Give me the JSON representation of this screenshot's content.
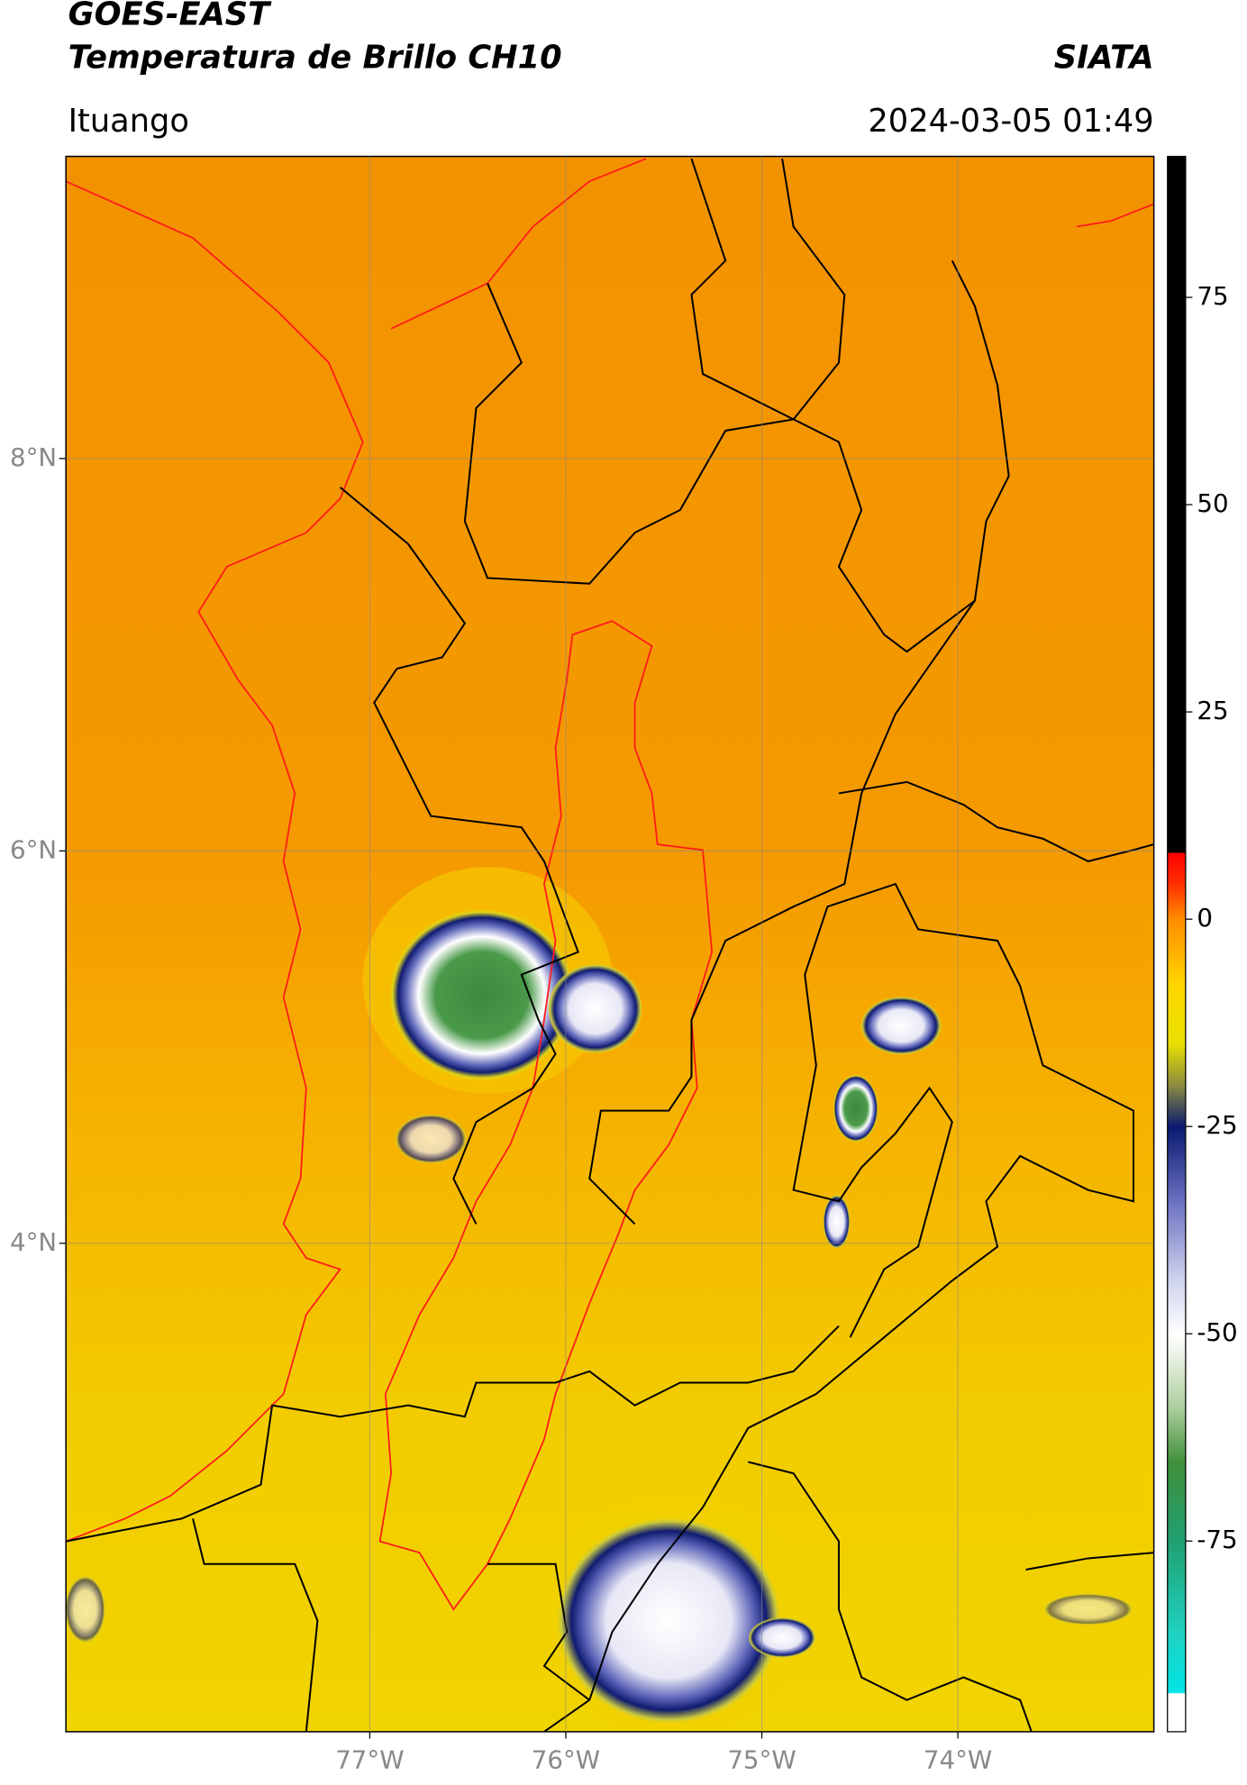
{
  "chart_data": {
    "type": "map",
    "title": "GOES-EAST",
    "subtitle": "Temperatura de Brillo CH10",
    "source": "SIATA",
    "region": "Ituango",
    "timestamp": "2024-03-05 01:49",
    "xlim": [
      -78.55,
      -73.0
    ],
    "ylim": [
      1.51,
      9.54
    ],
    "xticks": [
      {
        "value": -77,
        "label": "77°W"
      },
      {
        "value": -76,
        "label": "76°W"
      },
      {
        "value": -75,
        "label": "75°W"
      },
      {
        "value": -74,
        "label": "74°W"
      }
    ],
    "yticks": [
      {
        "value": 4,
        "label": "4°N"
      },
      {
        "value": 6,
        "label": "6°N"
      },
      {
        "value": 8,
        "label": "8°N"
      }
    ],
    "grid": true,
    "colorbar": {
      "lim": [
        -98,
        92
      ],
      "ticks": [
        -75,
        -50,
        -25,
        0,
        25,
        50,
        75
      ]
    }
  }
}
